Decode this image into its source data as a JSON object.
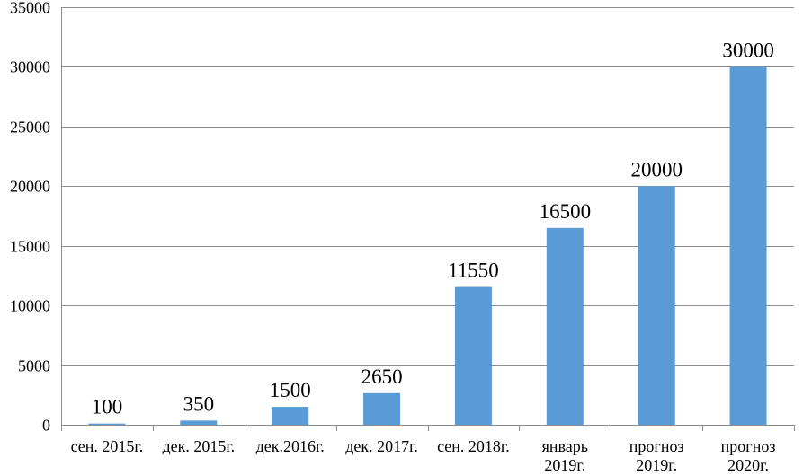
{
  "chart_data": {
    "type": "bar",
    "categories": [
      "сен. 2015г.",
      "дек. 2015г.",
      "дек.2016г.",
      "дек. 2017г.",
      "сен. 2018г.",
      "январь 2019г.",
      "прогноз 2019г.",
      "прогноз 2020г."
    ],
    "category_lines": [
      [
        "сен. 2015г."
      ],
      [
        "дек. 2015г."
      ],
      [
        "дек.2016г."
      ],
      [
        "дек. 2017г."
      ],
      [
        "сен. 2018г."
      ],
      [
        "январь",
        "2019г."
      ],
      [
        "прогноз",
        "2019г."
      ],
      [
        "прогноз",
        "2020г."
      ]
    ],
    "values": [
      100,
      350,
      1500,
      2650,
      11550,
      16500,
      20000,
      30000
    ],
    "data_labels": [
      "100",
      "350",
      "1500",
      "2650",
      "11550",
      "16500",
      "20000",
      "30000"
    ],
    "yticks": [
      0,
      5000,
      10000,
      15000,
      20000,
      25000,
      30000,
      35000
    ],
    "ylim": [
      0,
      35000
    ],
    "grid": true,
    "legend": "none",
    "bar_color": "#5b9bd5",
    "title": "",
    "xlabel": "",
    "ylabel": ""
  }
}
